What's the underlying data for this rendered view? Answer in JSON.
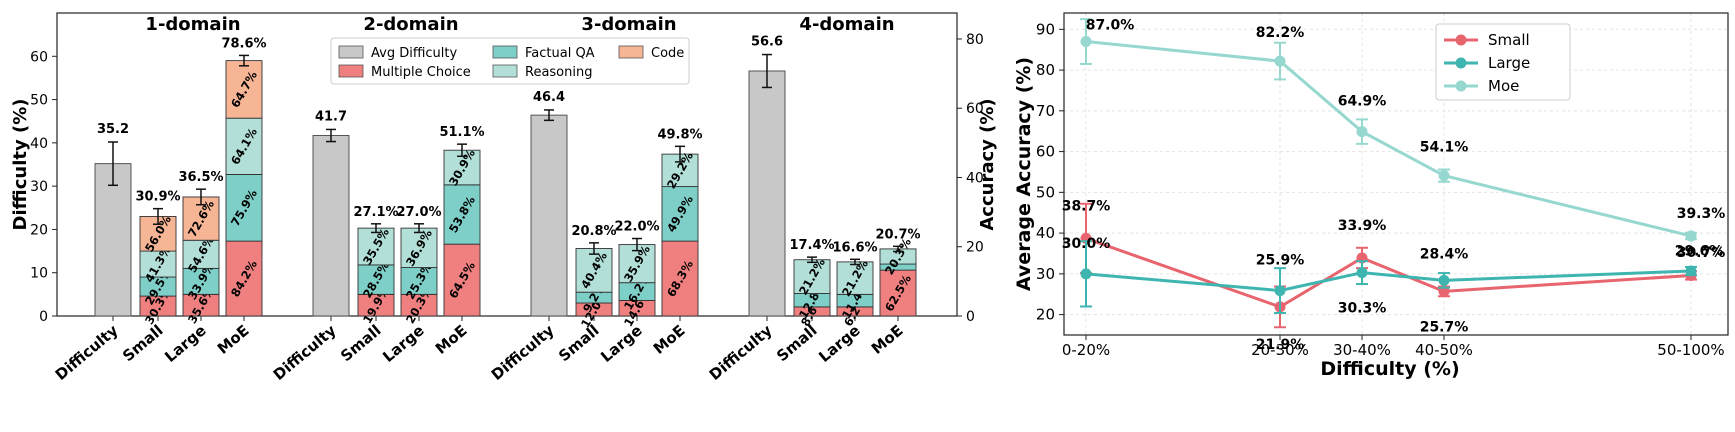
{
  "chart_data": [
    {
      "type": "bar",
      "ylabel": "Difficulty (%)",
      "y2label": "Accuracy (%)",
      "ylim": [
        0,
        70
      ],
      "y2lim": [
        0,
        87.5
      ],
      "yticks": [
        0,
        10,
        20,
        30,
        40,
        50,
        60
      ],
      "y2ticks": [
        0,
        20,
        40,
        60,
        80
      ],
      "grid": false,
      "legend_position": "top-center",
      "legend": [
        "Avg Difficulty",
        "Multiple Choice",
        "Factual QA",
        "Reasoning",
        "Code"
      ],
      "colors": {
        "avg": "#c8c8c8",
        "mc": "#f08080",
        "fqa": "#7ecfc7",
        "reasoning": "#b2e0d8",
        "code": "#f6b595"
      },
      "groups": [
        {
          "title": "1-domain",
          "difficulty": {
            "label": "Difficulty",
            "value": 35.2,
            "err": 5.0,
            "text": "35.2"
          },
          "models": [
            {
              "label": "Small",
              "total_text": "30.9%",
              "total": 23.0,
              "err": 1.8,
              "segments": [
                {
                  "type": "mc",
                  "top": 4.6,
                  "text": "30.3%"
                },
                {
                  "type": "fqa",
                  "top": 9.0,
                  "text": "29.5%"
                },
                {
                  "type": "reasoning",
                  "top": 15.0,
                  "text": "41.3%"
                },
                {
                  "type": "code",
                  "top": 23.0,
                  "text": "56.0%"
                }
              ]
            },
            {
              "label": "Large",
              "total_text": "36.5%",
              "total": 27.5,
              "err": 1.8,
              "segments": [
                {
                  "type": "mc",
                  "top": 5.0,
                  "text": "35.6%"
                },
                {
                  "type": "fqa",
                  "top": 11.0,
                  "text": "33.9%"
                },
                {
                  "type": "reasoning",
                  "top": 17.5,
                  "text": "54.6%"
                },
                {
                  "type": "code",
                  "top": 27.5,
                  "text": "72.6%"
                }
              ]
            },
            {
              "label": "MoE",
              "total_text": "78.6%",
              "total": 59.0,
              "err": 1.2,
              "segments": [
                {
                  "type": "mc",
                  "top": 17.3,
                  "text": "84.2%"
                },
                {
                  "type": "fqa",
                  "top": 32.7,
                  "text": "75.9%"
                },
                {
                  "type": "reasoning",
                  "top": 45.7,
                  "text": "64.1%"
                },
                {
                  "type": "code",
                  "top": 59.0,
                  "text": "64.7%"
                }
              ]
            }
          ]
        },
        {
          "title": "2-domain",
          "difficulty": {
            "label": "Difficulty",
            "value": 41.7,
            "err": 1.4,
            "text": "41.7"
          },
          "models": [
            {
              "label": "Small",
              "total_text": "27.1%",
              "total": 20.3,
              "err": 1.0,
              "segments": [
                {
                  "type": "mc",
                  "top": 5.0,
                  "text": "19.9%"
                },
                {
                  "type": "fqa",
                  "top": 11.8,
                  "text": "28.5%"
                },
                {
                  "type": "reasoning",
                  "top": 20.3,
                  "text": "35.5%"
                }
              ]
            },
            {
              "label": "Large",
              "total_text": "27.0%",
              "total": 20.3,
              "err": 1.0,
              "segments": [
                {
                  "type": "mc",
                  "top": 5.0,
                  "text": "20.3%"
                },
                {
                  "type": "fqa",
                  "top": 11.2,
                  "text": "25.3%"
                },
                {
                  "type": "reasoning",
                  "top": 20.3,
                  "text": "36.9%"
                }
              ]
            },
            {
              "label": "MoE",
              "total_text": "51.1%",
              "total": 38.3,
              "err": 1.4,
              "segments": [
                {
                  "type": "mc",
                  "top": 16.6,
                  "text": "64.5%"
                },
                {
                  "type": "fqa",
                  "top": 30.3,
                  "text": "53.8%"
                },
                {
                  "type": "reasoning",
                  "top": 38.3,
                  "text": "30.9%"
                }
              ]
            }
          ]
        },
        {
          "title": "3-domain",
          "difficulty": {
            "label": "Difficulty",
            "value": 46.4,
            "err": 1.2,
            "text": "46.4"
          },
          "models": [
            {
              "label": "Small",
              "total_text": "20.8%",
              "total": 15.6,
              "err": 1.3,
              "segments": [
                {
                  "type": "mc",
                  "top": 3.0,
                  "text": "12.0%"
                },
                {
                  "type": "fqa",
                  "top": 5.5,
                  "text": "9.2%"
                },
                {
                  "type": "reasoning",
                  "top": 15.6,
                  "text": "40.4%"
                }
              ]
            },
            {
              "label": "Large",
              "total_text": "22.0%",
              "total": 16.5,
              "err": 1.4,
              "segments": [
                {
                  "type": "mc",
                  "top": 3.6,
                  "text": "14.6%"
                },
                {
                  "type": "fqa",
                  "top": 7.7,
                  "text": "16.2%"
                },
                {
                  "type": "reasoning",
                  "top": 16.5,
                  "text": "35.9%"
                }
              ]
            },
            {
              "label": "MoE",
              "total_text": "49.8%",
              "total": 37.4,
              "err": 1.8,
              "segments": [
                {
                  "type": "mc",
                  "top": 17.3,
                  "text": "68.3%"
                },
                {
                  "type": "fqa",
                  "top": 29.9,
                  "text": "49.9%"
                },
                {
                  "type": "reasoning",
                  "top": 37.4,
                  "text": "29.2%"
                }
              ]
            }
          ]
        },
        {
          "title": "4-domain",
          "difficulty": {
            "label": "Difficulty",
            "value": 56.6,
            "err": 3.8,
            "text": "56.6"
          },
          "models": [
            {
              "label": "Small",
              "total_text": "17.4%",
              "total": 13.0,
              "err": 0.6,
              "segments": [
                {
                  "type": "mc",
                  "top": 2.1,
                  "text": "8.6%"
                },
                {
                  "type": "fqa",
                  "top": 5.2,
                  "text": "12.8%"
                },
                {
                  "type": "reasoning",
                  "top": 13.0,
                  "text": "21.2%"
                }
              ]
            },
            {
              "label": "Large",
              "total_text": "16.6%",
              "total": 12.5,
              "err": 0.6,
              "segments": [
                {
                  "type": "mc",
                  "top": 2.1,
                  "text": "6.2%"
                },
                {
                  "type": "fqa",
                  "top": 5.0,
                  "text": "11.4%"
                },
                {
                  "type": "reasoning",
                  "top": 12.5,
                  "text": "21.2%"
                }
              ]
            },
            {
              "label": "MoE",
              "total_text": "20.7%",
              "total": 15.5,
              "err": 0.6,
              "segments": [
                {
                  "type": "mc",
                  "top": 10.6,
                  "text": "62.5%"
                },
                {
                  "type": "fqa",
                  "top": 12.0,
                  "text": ""
                },
                {
                  "type": "reasoning",
                  "top": 15.5,
                  "text": "20.3%"
                }
              ]
            }
          ]
        }
      ]
    },
    {
      "type": "line",
      "xlabel": "Difficulty (%)",
      "ylabel": "Average Accuracy (%)",
      "x": [
        "0-20%",
        "20-30%",
        "30-40%",
        "40-50%",
        "50-100%"
      ],
      "ylim": [
        15,
        94
      ],
      "yticks": [
        20,
        30,
        40,
        50,
        60,
        70,
        80,
        90
      ],
      "grid": true,
      "legend_position": "top-right",
      "series": [
        {
          "name": "Small",
          "color": "#e8646e",
          "values": [
            38.7,
            21.9,
            33.9,
            25.7,
            29.6
          ],
          "errors": [
            8.5,
            5.0,
            2.5,
            1.2,
            1.0
          ],
          "labels": [
            "38.7%",
            "21.9%",
            "33.9%",
            "25.7%",
            "29.6%"
          ]
        },
        {
          "name": "Large",
          "color": "#3fb5b0",
          "values": [
            30.0,
            25.9,
            30.3,
            28.4,
            30.7
          ],
          "errors": [
            8.0,
            5.5,
            2.8,
            1.8,
            1.0
          ],
          "labels": [
            "30.0%",
            "25.9%",
            "30.3%",
            "28.4%",
            "30.7%"
          ]
        },
        {
          "name": "Moe",
          "color": "#96d8cf",
          "values": [
            87.0,
            82.2,
            64.9,
            54.1,
            39.3
          ],
          "errors": [
            5.5,
            4.5,
            3.0,
            1.5,
            0.8
          ],
          "labels": [
            "87.0%",
            "82.2%",
            "64.9%",
            "54.1%",
            "39.3%"
          ]
        }
      ]
    }
  ]
}
